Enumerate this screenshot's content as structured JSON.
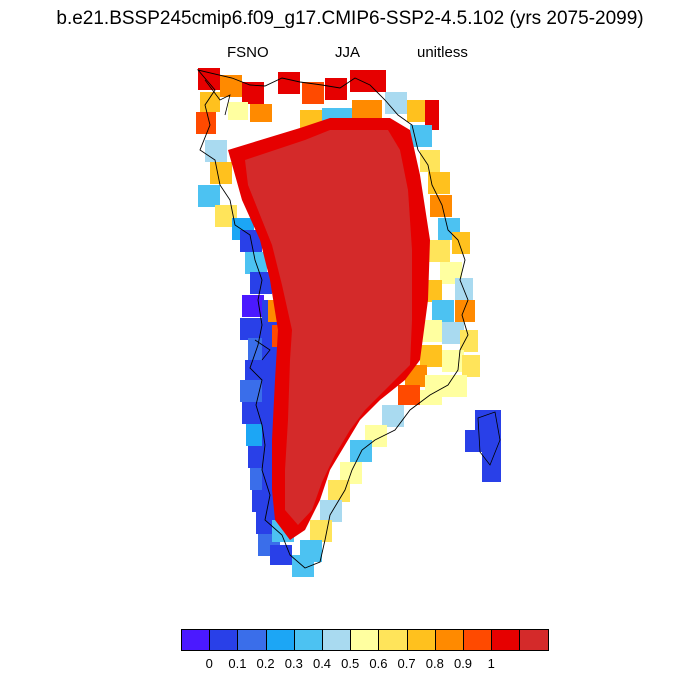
{
  "title": "b.e21.BSSP245cmip6.f09_g17.CMIP6-SSP2-4.5.102 (yrs 2075-2099)",
  "subtitle": {
    "left": "FSNO",
    "center": "JJA",
    "right": "unitless"
  },
  "colorbar": {
    "colors": [
      "#4b19ff",
      "#2940e8",
      "#3a6eea",
      "#1ca6f5",
      "#4cc2f2",
      "#a9daf0",
      "#ffffa0",
      "#ffe45a",
      "#ffc11e",
      "#ff8a00",
      "#ff4a00",
      "#e60000",
      "#d42a2a"
    ],
    "tick_labels": [
      "0",
      "0.1",
      "0.2",
      "0.3",
      "0.4",
      "0.5",
      "0.6",
      "0.7",
      "0.8",
      "0.9",
      "1"
    ]
  },
  "map_regions": [
    {
      "name": "interior",
      "value": 1.0,
      "color": "#d42a2a"
    },
    {
      "name": "margin-north",
      "value": 0.9,
      "color": "#e60000"
    },
    {
      "name": "margin-orange",
      "value": 0.75,
      "color": "#ffc11e"
    },
    {
      "name": "west-coast",
      "value": 0.15,
      "color": "#2940e8"
    },
    {
      "name": "east-coast",
      "value": 0.55,
      "color": "#ffffa0"
    }
  ]
}
